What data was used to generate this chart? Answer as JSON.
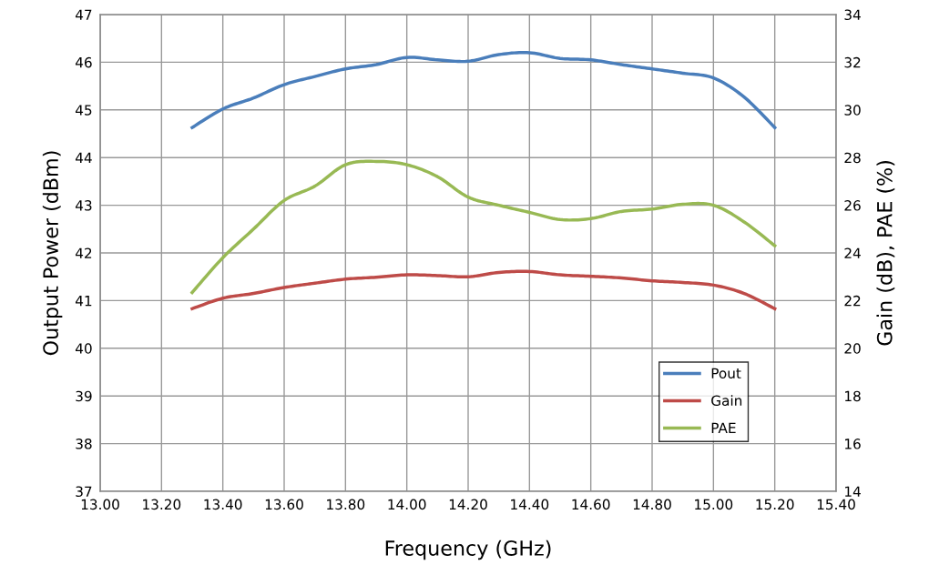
{
  "chart_data": {
    "type": "line",
    "xlabel": "Frequency (GHz)",
    "ylabel": "Output Power (dBm)",
    "y2label": "Gain (dB), PAE (%)",
    "x": [
      13.3,
      13.4,
      13.5,
      13.6,
      13.7,
      13.8,
      13.9,
      14.0,
      14.1,
      14.2,
      14.3,
      14.4,
      14.5,
      14.6,
      14.7,
      14.8,
      14.9,
      15.0,
      15.1,
      15.2
    ],
    "series": [
      {
        "name": "Pout",
        "color": "#4a7ebb",
        "values": [
          44.63,
          45.02,
          45.25,
          45.53,
          45.7,
          45.86,
          45.95,
          46.1,
          46.05,
          46.02,
          46.16,
          46.2,
          46.08,
          46.05,
          45.95,
          45.86,
          45.77,
          45.67,
          45.27,
          44.63
        ]
      },
      {
        "name": "Gain",
        "color": "#be4b48",
        "axis": "y2",
        "values": [
          21.66,
          22.1,
          22.3,
          22.55,
          22.73,
          22.9,
          22.98,
          23.08,
          23.05,
          23.0,
          23.18,
          23.22,
          23.08,
          23.02,
          22.95,
          22.83,
          22.76,
          22.65,
          22.3,
          21.66
        ]
      },
      {
        "name": "PAE",
        "color": "#98b954",
        "axis": "y2",
        "values": [
          22.34,
          23.8,
          25.0,
          26.2,
          26.8,
          27.7,
          27.84,
          27.7,
          27.2,
          26.34,
          26.0,
          25.7,
          25.4,
          25.44,
          25.74,
          25.84,
          26.04,
          26.0,
          25.3,
          24.3
        ]
      }
    ],
    "xlim": [
      13.0,
      15.4
    ],
    "xticks": [
      {
        "value": 13.0,
        "label": "13.00"
      },
      {
        "value": 13.2,
        "label": "13.20"
      },
      {
        "value": 13.4,
        "label": "13.40"
      },
      {
        "value": 13.6,
        "label": "13.60"
      },
      {
        "value": 13.8,
        "label": "13.80"
      },
      {
        "value": 14.0,
        "label": "14.00"
      },
      {
        "value": 14.2,
        "label": "14.20"
      },
      {
        "value": 14.4,
        "label": "14.40"
      },
      {
        "value": 14.6,
        "label": "14.60"
      },
      {
        "value": 14.8,
        "label": "14.80"
      },
      {
        "value": 15.0,
        "label": "15.00"
      },
      {
        "value": 15.2,
        "label": "15.20"
      },
      {
        "value": 15.4,
        "label": "15.40"
      }
    ],
    "ylim": [
      37,
      47
    ],
    "yticks": [
      37,
      38,
      39,
      40,
      41,
      42,
      43,
      44,
      45,
      46,
      47
    ],
    "y2lim": [
      14,
      34
    ],
    "y2ticks": [
      14,
      16,
      18,
      20,
      22,
      24,
      26,
      28,
      30,
      32,
      34
    ],
    "grid": true,
    "legend": "bottom right",
    "marker": "none",
    "line_style": "solid"
  }
}
